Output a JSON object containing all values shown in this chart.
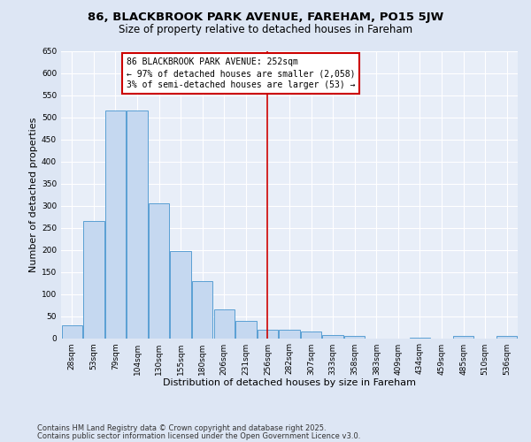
{
  "title1": "86, BLACKBROOK PARK AVENUE, FAREHAM, PO15 5JW",
  "title2": "Size of property relative to detached houses in Fareham",
  "xlabel": "Distribution of detached houses by size in Fareham",
  "ylabel": "Number of detached properties",
  "categories": [
    "28sqm",
    "53sqm",
    "79sqm",
    "104sqm",
    "130sqm",
    "155sqm",
    "180sqm",
    "206sqm",
    "231sqm",
    "256sqm",
    "282sqm",
    "307sqm",
    "333sqm",
    "358sqm",
    "383sqm",
    "409sqm",
    "434sqm",
    "459sqm",
    "485sqm",
    "510sqm",
    "536sqm"
  ],
  "values": [
    30,
    265,
    515,
    515,
    305,
    198,
    130,
    65,
    40,
    20,
    20,
    15,
    8,
    5,
    0,
    0,
    1,
    0,
    5,
    0,
    5
  ],
  "bar_color": "#c5d8f0",
  "bar_edge_color": "#5a9fd4",
  "bar_linewidth": 0.7,
  "vline_x": 9.0,
  "vline_color": "#cc0000",
  "annotation_text": "86 BLACKBROOK PARK AVENUE: 252sqm\n← 97% of detached houses are smaller (2,058)\n3% of semi-detached houses are larger (53) →",
  "annotation_box_color": "#ffffff",
  "annotation_box_edge": "#cc0000",
  "ylim": [
    0,
    650
  ],
  "yticks": [
    0,
    50,
    100,
    150,
    200,
    250,
    300,
    350,
    400,
    450,
    500,
    550,
    600,
    650
  ],
  "bg_color": "#e8eef8",
  "grid_color": "#ffffff",
  "footer1": "Contains HM Land Registry data © Crown copyright and database right 2025.",
  "footer2": "Contains public sector information licensed under the Open Government Licence v3.0.",
  "title1_fontsize": 9.5,
  "title2_fontsize": 8.5,
  "axis_fontsize": 8,
  "tick_fontsize": 6.5,
  "annotation_fontsize": 7,
  "footer_fontsize": 6.0
}
